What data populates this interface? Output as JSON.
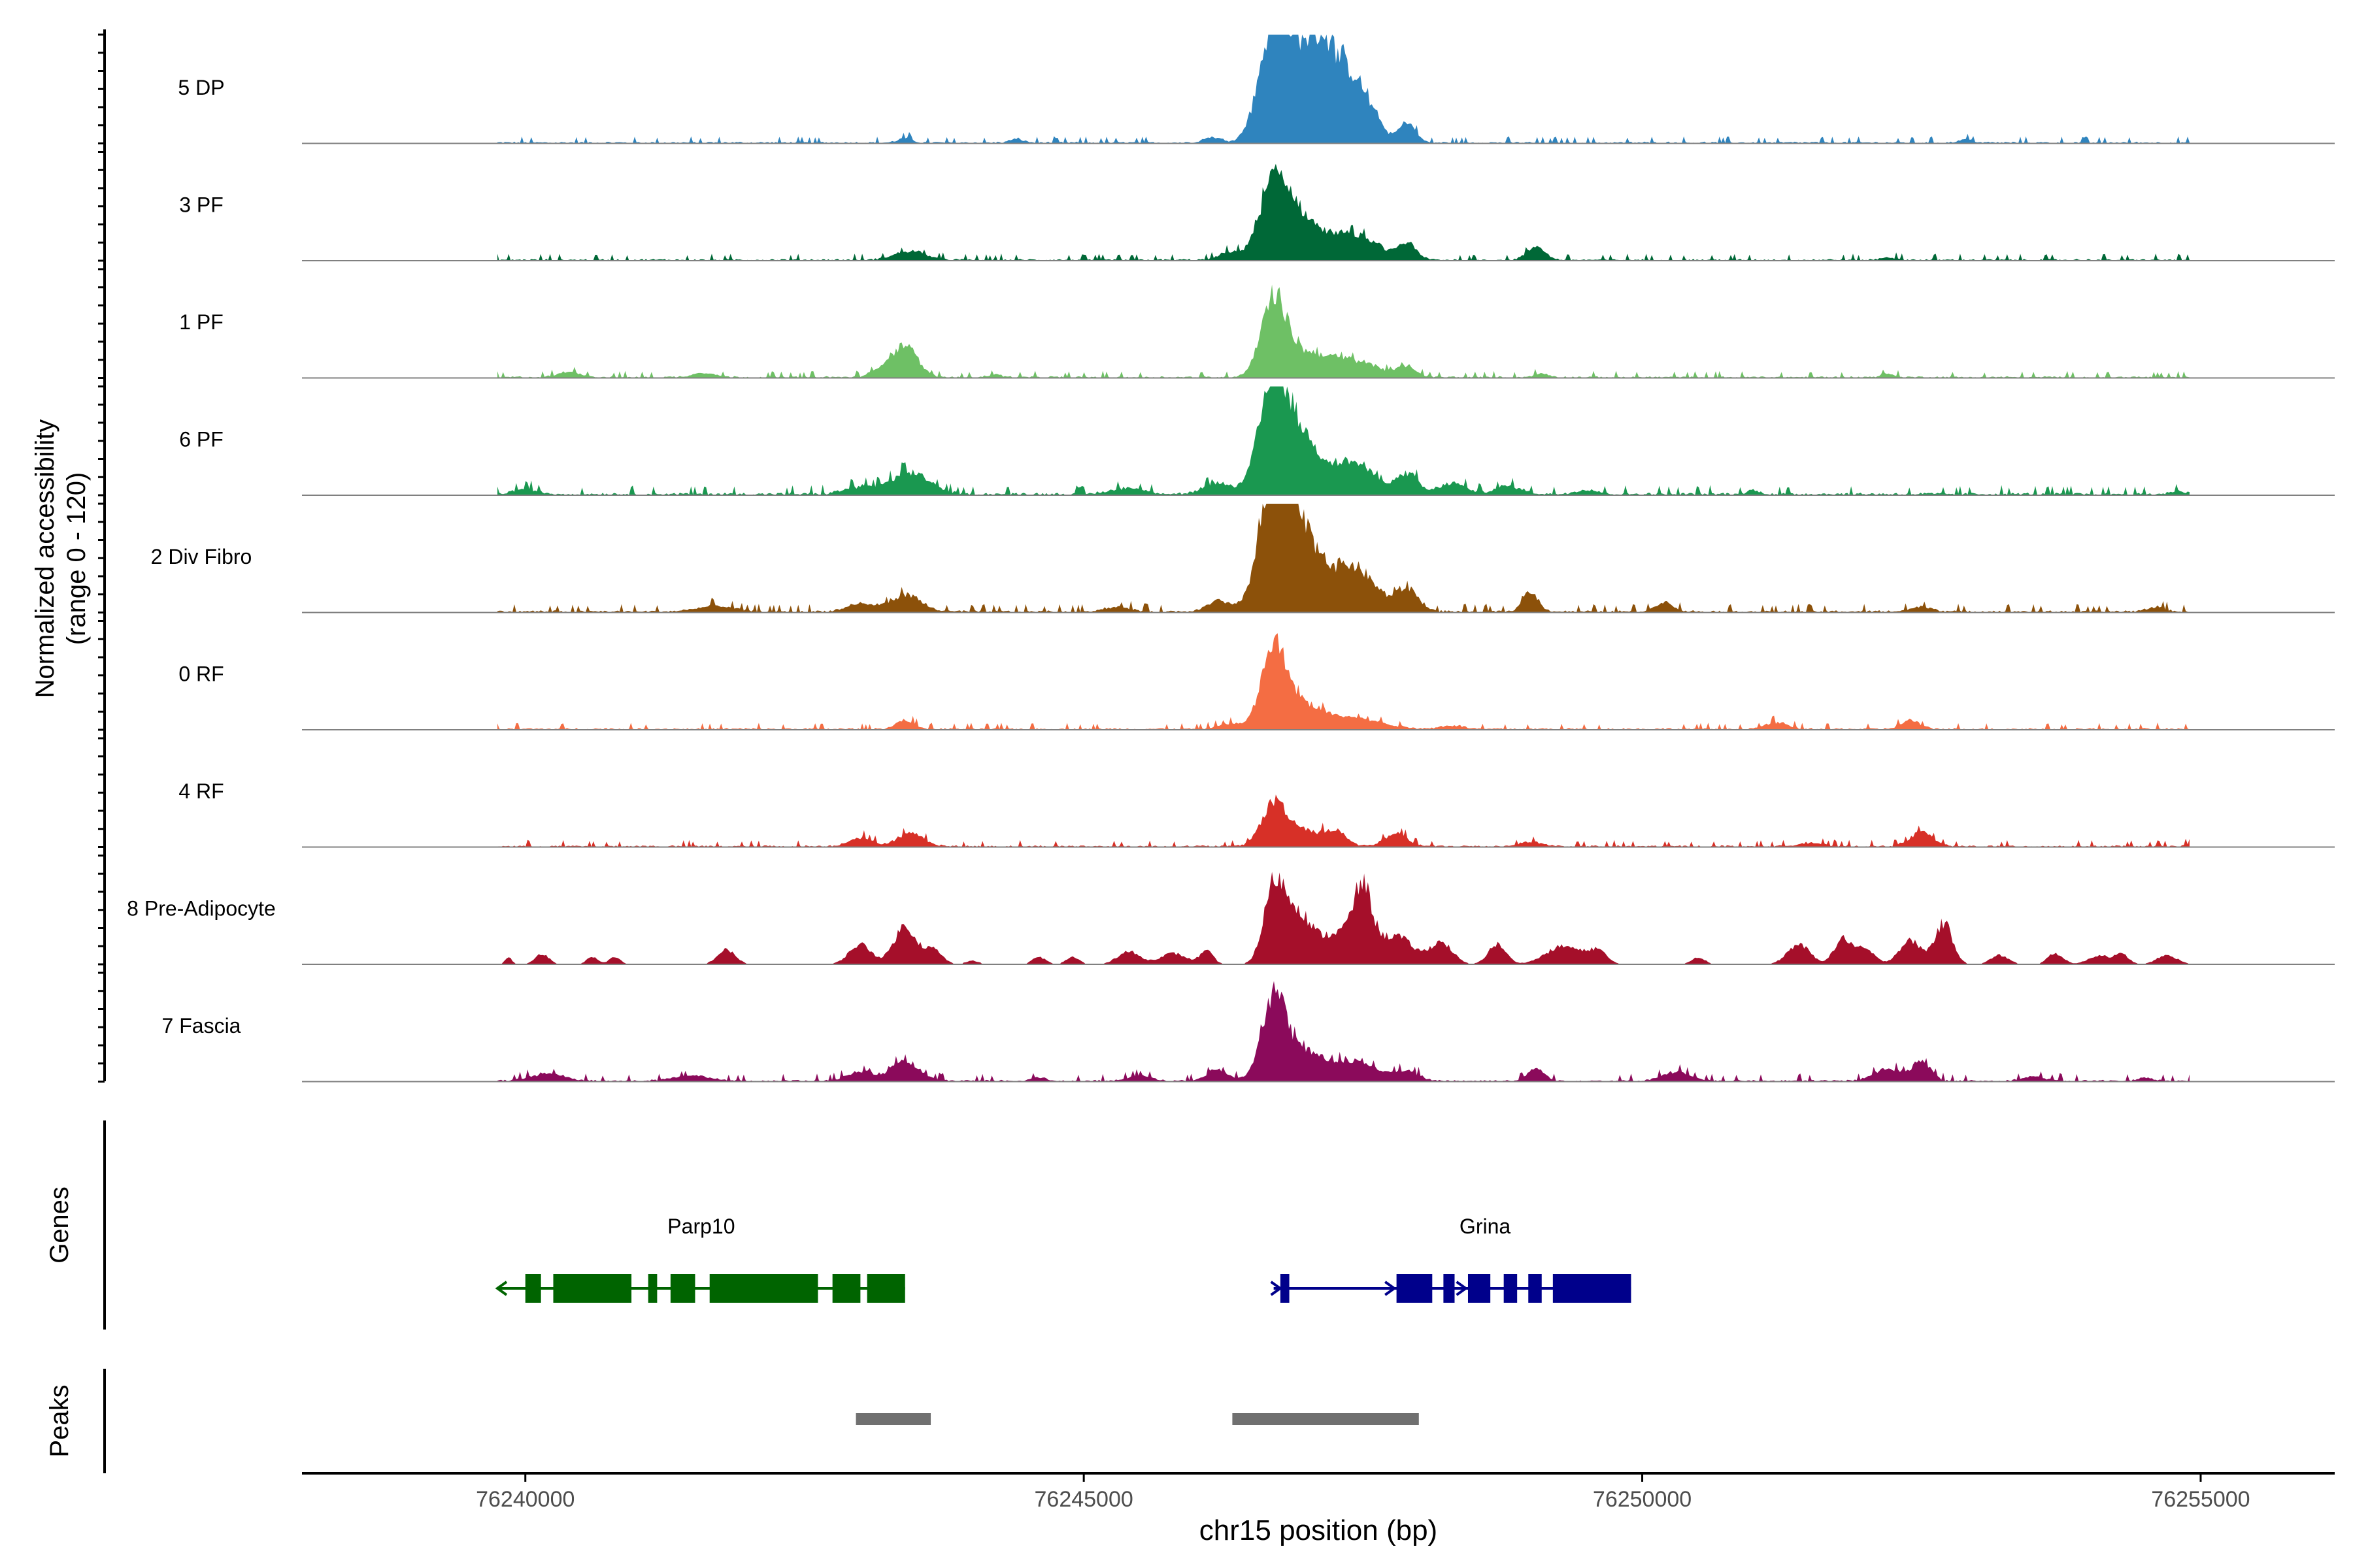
{
  "chart_data": {
    "type": "area",
    "chromosome": "chr15",
    "x_range": [
      76238000,
      76256200
    ],
    "y_range": [
      0,
      120
    ],
    "xlabel": "chr15 position (bp)",
    "ylabel_line1": "Normalized accessibility",
    "ylabel_line2": "(range 0 - 120)",
    "x_ticks": [
      {
        "value": 76240000,
        "label": "76240000"
      },
      {
        "value": 76245000,
        "label": "76245000"
      },
      {
        "value": 76250000,
        "label": "76250000"
      },
      {
        "value": 76255000,
        "label": "76255000"
      }
    ],
    "tracks": [
      {
        "name": "5 DP",
        "color": "#2f84be",
        "baseline": 2,
        "noise": 2.5,
        "peaks": [
          [
            76246700,
            120,
            130
          ],
          [
            76246950,
            82,
            160
          ],
          [
            76247400,
            70,
            170
          ],
          [
            76247900,
            22,
            70
          ],
          [
            76247150,
            60,
            120
          ],
          [
            76243400,
            5,
            60
          ],
          [
            76244400,
            4,
            60
          ],
          [
            76252900,
            4,
            60
          ],
          [
            76246150,
            6,
            80
          ]
        ]
      },
      {
        "name": "3 PF",
        "color": "#006837",
        "baseline": 2,
        "noise": 2.5,
        "peaks": [
          [
            76246700,
            82,
            130
          ],
          [
            76246950,
            40,
            160
          ],
          [
            76247400,
            28,
            220
          ],
          [
            76247900,
            16,
            80
          ],
          [
            76249050,
            14,
            80
          ],
          [
            76243450,
            10,
            140
          ],
          [
            76252200,
            3,
            60
          ],
          [
            76246300,
            8,
            90
          ]
        ]
      },
      {
        "name": "1 PF",
        "color": "#6ec065",
        "baseline": 2,
        "noise": 2.5,
        "peaks": [
          [
            76246700,
            80,
            110
          ],
          [
            76246950,
            24,
            200
          ],
          [
            76247400,
            18,
            240
          ],
          [
            76247900,
            10,
            80
          ],
          [
            76243400,
            34,
            110
          ],
          [
            76243200,
            8,
            100
          ],
          [
            76240400,
            6,
            100
          ],
          [
            76241600,
            5,
            100
          ],
          [
            76244200,
            3,
            60
          ],
          [
            76249100,
            4,
            60
          ],
          [
            76252200,
            4,
            60
          ]
        ]
      },
      {
        "name": "6 PF",
        "color": "#1a9850",
        "baseline": 3,
        "noise": 3.5,
        "peaks": [
          [
            76246700,
            120,
            130
          ],
          [
            76246950,
            55,
            160
          ],
          [
            76247400,
            35,
            200
          ],
          [
            76247900,
            22,
            90
          ],
          [
            76243450,
            24,
            170
          ],
          [
            76243000,
            8,
            140
          ],
          [
            76248300,
            12,
            120
          ],
          [
            76248800,
            9,
            120
          ],
          [
            76240000,
            6,
            100
          ],
          [
            76245400,
            7,
            150
          ],
          [
            76249500,
            5,
            100
          ],
          [
            76246200,
            12,
            120
          ],
          [
            76251000,
            4,
            60
          ],
          [
            76254800,
            4,
            60
          ]
        ]
      },
      {
        "name": "2 Div Fibro",
        "color": "#8c510a",
        "baseline": 2.5,
        "noise": 3,
        "peaks": [
          [
            76246700,
            135,
            130
          ],
          [
            76246950,
            80,
            160
          ],
          [
            76247400,
            50,
            200
          ],
          [
            76247900,
            24,
            100
          ],
          [
            76249000,
            22,
            70
          ],
          [
            76243400,
            18,
            140
          ],
          [
            76243000,
            8,
            120
          ],
          [
            76241700,
            6,
            160
          ],
          [
            76245300,
            5,
            120
          ],
          [
            76250200,
            10,
            80
          ],
          [
            76252500,
            5,
            100
          ],
          [
            76246200,
            12,
            100
          ],
          [
            76254600,
            5,
            80
          ]
        ]
      },
      {
        "name": "0 RF",
        "color": "#f46d43",
        "baseline": 2,
        "noise": 2.5,
        "peaks": [
          [
            76246700,
            85,
            110
          ],
          [
            76246950,
            25,
            180
          ],
          [
            76247400,
            12,
            260
          ],
          [
            76243400,
            10,
            80
          ],
          [
            76251200,
            7,
            100
          ],
          [
            76252400,
            10,
            80
          ],
          [
            76246300,
            6,
            100
          ],
          [
            76248300,
            4,
            100
          ]
        ]
      },
      {
        "name": "4 RF",
        "color": "#d73027",
        "baseline": 2,
        "noise": 2.5,
        "peaks": [
          [
            76246700,
            45,
            110
          ],
          [
            76246950,
            18,
            150
          ],
          [
            76247250,
            16,
            100
          ],
          [
            76247800,
            14,
            100
          ],
          [
            76243450,
            14,
            120
          ],
          [
            76243000,
            10,
            100
          ],
          [
            76252500,
            16,
            100
          ],
          [
            76251500,
            4,
            100
          ],
          [
            76249000,
            5,
            100
          ],
          [
            76254900,
            3,
            40
          ]
        ]
      },
      {
        "name": "8 Pre-Adipocyte",
        "color": "#a50f2a",
        "baseline": 0,
        "noise": 0,
        "peaks": [
          [
            76246700,
            80,
            90
          ],
          [
            76246900,
            55,
            120
          ],
          [
            76247300,
            35,
            200
          ],
          [
            76247500,
            65,
            80
          ],
          [
            76247800,
            30,
            150
          ],
          [
            76248200,
            24,
            100
          ],
          [
            76248700,
            22,
            80
          ],
          [
            76249300,
            20,
            160
          ],
          [
            76249600,
            14,
            80
          ],
          [
            76243400,
            42,
            100
          ],
          [
            76243000,
            22,
            100
          ],
          [
            76243650,
            16,
            80
          ],
          [
            76241800,
            16,
            80
          ],
          [
            76240150,
            12,
            60
          ],
          [
            76240600,
            8,
            50
          ],
          [
            76240800,
            8,
            50
          ],
          [
            76244600,
            8,
            60
          ],
          [
            76244900,
            8,
            60
          ],
          [
            76245400,
            14,
            100
          ],
          [
            76245800,
            12,
            120
          ],
          [
            76246100,
            14,
            60
          ],
          [
            76250500,
            8,
            60
          ],
          [
            76251400,
            22,
            100
          ],
          [
            76251800,
            28,
            80
          ],
          [
            76252000,
            16,
            80
          ],
          [
            76252700,
            45,
            80
          ],
          [
            76252400,
            26,
            100
          ],
          [
            76253200,
            10,
            80
          ],
          [
            76253700,
            12,
            70
          ],
          [
            76254100,
            10,
            100
          ],
          [
            76254300,
            10,
            60
          ],
          [
            76254700,
            10,
            90
          ],
          [
            76244000,
            4,
            60
          ],
          [
            76239850,
            8,
            30
          ]
        ]
      },
      {
        "name": "7 Fascia",
        "color": "#8b0a5b",
        "baseline": 2,
        "noise": 3,
        "peaks": [
          [
            76246700,
            90,
            110
          ],
          [
            76246950,
            28,
            160
          ],
          [
            76247400,
            22,
            220
          ],
          [
            76247900,
            10,
            100
          ],
          [
            76243400,
            20,
            130
          ],
          [
            76243000,
            10,
            120
          ],
          [
            76240200,
            8,
            150
          ],
          [
            76241500,
            6,
            160
          ],
          [
            76249050,
            14,
            70
          ],
          [
            76250300,
            10,
            120
          ],
          [
            76252500,
            22,
            80
          ],
          [
            76252200,
            14,
            120
          ],
          [
            76253500,
            5,
            100
          ],
          [
            76244600,
            4,
            60
          ],
          [
            76245500,
            6,
            100
          ],
          [
            76246200,
            12,
            100
          ],
          [
            76254500,
            4,
            60
          ]
        ]
      }
    ],
    "genes": [
      {
        "name": "Parp10",
        "color": "#006400",
        "strand": "-",
        "start": 76239750,
        "end": 76243400,
        "exons": [
          [
            76240000,
            76240140
          ],
          [
            76240250,
            76240950
          ],
          [
            76241100,
            76241180
          ],
          [
            76241300,
            76241520
          ],
          [
            76241650,
            76242620
          ],
          [
            76242750,
            76243000
          ],
          [
            76243060,
            76243400
          ]
        ]
      },
      {
        "name": "Grina",
        "color": "#00008b",
        "strand": "+",
        "start": 76246700,
        "end": 76249900,
        "exons": [
          [
            76246760,
            76246840
          ],
          [
            76247800,
            76248120
          ],
          [
            76248220,
            76248320
          ],
          [
            76248440,
            76248640
          ],
          [
            76248760,
            76248880
          ],
          [
            76248980,
            76249100
          ],
          [
            76249200,
            76249900
          ]
        ]
      }
    ],
    "peaks": [
      {
        "start": 76242960,
        "end": 76243630
      },
      {
        "start": 76246330,
        "end": 76248000
      }
    ],
    "panel_labels": {
      "genes": "Genes",
      "peaks": "Peaks"
    }
  }
}
